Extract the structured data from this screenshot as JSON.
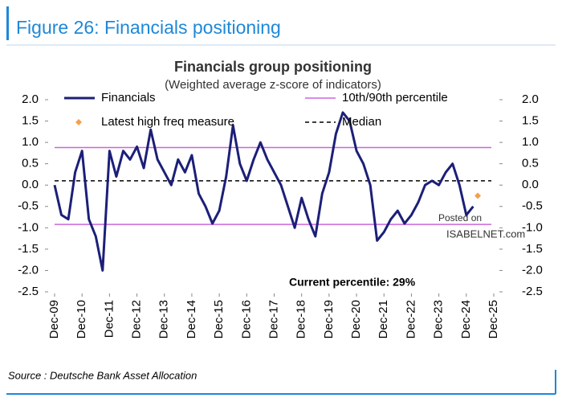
{
  "header": "Figure 26: Financials positioning",
  "source": "Source : Deutsche Bank Asset Allocation",
  "watermark": [
    "Posted on",
    "ISABELNET.com"
  ],
  "chart_data": {
    "type": "line",
    "title": "Financials group positioning",
    "subtitle": "(Weighted average z-score of indicators)",
    "annotation": "Current percentile: 29%",
    "x": [
      "Dec-09",
      "Mar-10",
      "Jun-10",
      "Sep-10",
      "Dec-10",
      "Mar-11",
      "Jun-11",
      "Sep-11",
      "Dec-11",
      "Mar-12",
      "Jun-12",
      "Sep-12",
      "Dec-12",
      "Mar-13",
      "Jun-13",
      "Sep-13",
      "Dec-13",
      "Mar-14",
      "Jun-14",
      "Sep-14",
      "Dec-14",
      "Mar-15",
      "Jun-15",
      "Sep-15",
      "Dec-15",
      "Mar-16",
      "Jun-16",
      "Sep-16",
      "Dec-16",
      "Mar-17",
      "Jun-17",
      "Sep-17",
      "Dec-17",
      "Mar-18",
      "Jun-18",
      "Sep-18",
      "Dec-18",
      "Mar-19",
      "Jun-19",
      "Sep-19",
      "Dec-19",
      "Mar-20",
      "Jun-20",
      "Sep-20",
      "Dec-20",
      "Mar-21",
      "Jun-21",
      "Sep-21",
      "Dec-21",
      "Mar-22",
      "Jun-22",
      "Sep-22",
      "Dec-22",
      "Mar-23",
      "Jun-23",
      "Sep-23",
      "Dec-23",
      "Mar-24",
      "Jun-24",
      "Sep-24",
      "Dec-24",
      "Mar-25"
    ],
    "series": [
      {
        "name": "Financials",
        "color": "#1c1f78",
        "values": [
          0.0,
          -0.7,
          -0.8,
          0.3,
          0.8,
          -0.8,
          -1.2,
          -2.0,
          0.8,
          0.2,
          0.8,
          0.6,
          0.9,
          0.4,
          1.3,
          0.6,
          0.3,
          0.0,
          0.6,
          0.3,
          0.7,
          -0.2,
          -0.5,
          -0.9,
          -0.6,
          0.2,
          1.4,
          0.5,
          0.1,
          0.6,
          1.0,
          0.6,
          0.3,
          0.0,
          -0.5,
          -1.0,
          -0.3,
          -0.8,
          -1.2,
          -0.2,
          0.3,
          1.2,
          1.7,
          1.5,
          0.8,
          0.5,
          0.0,
          -1.3,
          -1.1,
          -0.8,
          -0.6,
          -0.9,
          -0.7,
          -0.4,
          0.0,
          0.1,
          0.0,
          0.3,
          0.5,
          0.0,
          -0.7,
          -0.5
        ]
      },
      {
        "name": "Latest high freq measure",
        "color": "#f5a04a",
        "marker": "diamond",
        "x": [
          "May-25"
        ],
        "values": [
          -0.25
        ]
      }
    ],
    "hlines": [
      {
        "name": "10th/90th percentile",
        "color": "#cc66dd",
        "values": [
          0.88,
          -0.92
        ]
      },
      {
        "name": "Median",
        "color": "#000000",
        "dashed": true,
        "values": [
          0.1
        ]
      }
    ],
    "xticks": [
      "Dec-09",
      "Dec-10",
      "Dec-11",
      "Dec-12",
      "Dec-13",
      "Dec-14",
      "Dec-15",
      "Dec-16",
      "Dec-17",
      "Dec-18",
      "Dec-19",
      "Dec-20",
      "Dec-21",
      "Dec-22",
      "Dec-23",
      "Dec-24",
      "Dec-25"
    ],
    "ylim": [
      -2.5,
      2.0
    ],
    "yticks": [
      {
        "value": 2.0,
        "label": "2.0"
      },
      {
        "value": 1.5,
        "label": "1.5"
      },
      {
        "value": 1.0,
        "label": "1.0"
      },
      {
        "value": 0.5,
        "label": "0.5"
      },
      {
        "value": 0.0,
        "label": "0.0"
      },
      {
        "value": -0.5,
        "label": "-0.5"
      },
      {
        "value": -1.0,
        "label": "-1.0"
      },
      {
        "value": -1.5,
        "label": "-1.5"
      },
      {
        "value": -2.0,
        "label": "-2.0"
      },
      {
        "value": -2.5,
        "label": "-2.5"
      }
    ],
    "y2lim": [
      -2.5,
      2.0
    ],
    "y2ticks": [
      {
        "value": 2.0,
        "label": "2.0"
      },
      {
        "value": 1.5,
        "label": "1.5"
      },
      {
        "value": 1.0,
        "label": "1.0"
      },
      {
        "value": 0.5,
        "label": "0.5"
      },
      {
        "value": 0.0,
        "label": "0.0"
      },
      {
        "value": -0.5,
        "label": "-0.5"
      },
      {
        "value": -1.0,
        "label": "-1.0"
      },
      {
        "value": -1.5,
        "label": "-1.5"
      },
      {
        "value": -2.0,
        "label": "-2.0"
      },
      {
        "value": -2.5,
        "label": "-2.5"
      }
    ]
  }
}
